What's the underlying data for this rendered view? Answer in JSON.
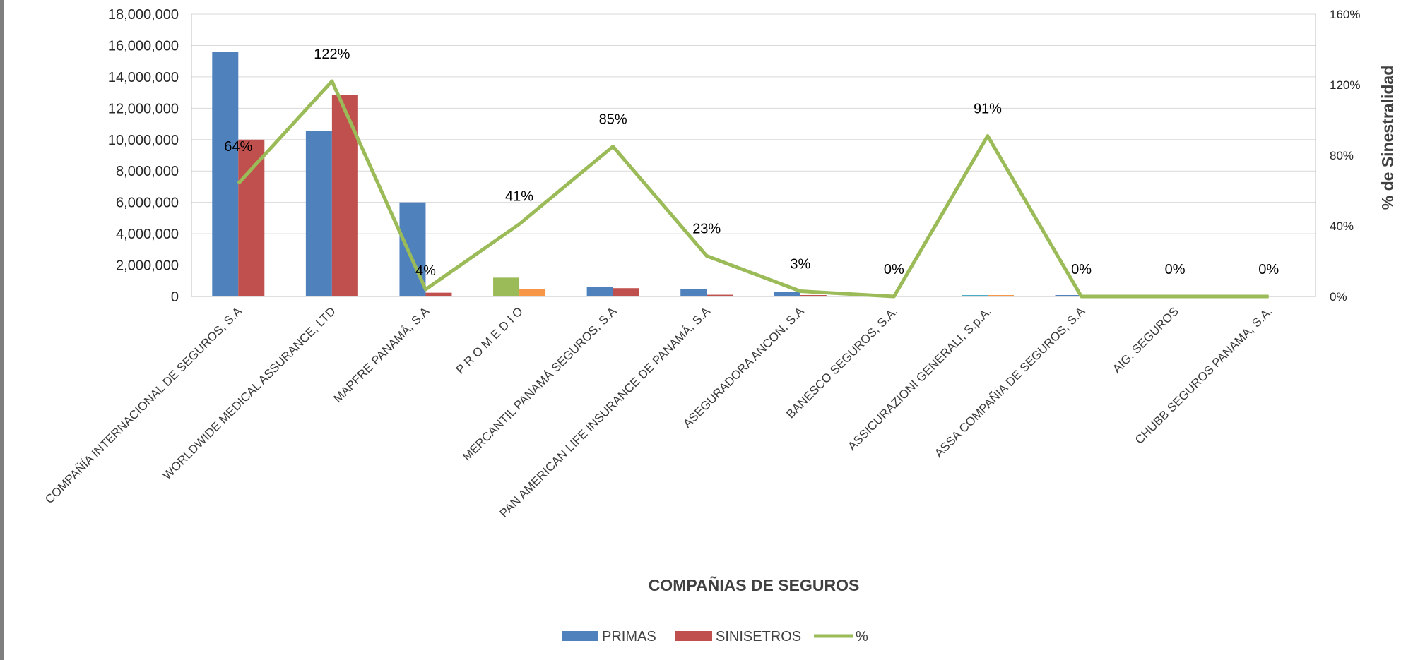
{
  "chart_data": {
    "type": "bar",
    "xlabel": "COMPAÑIAS DE SEGUROS",
    "ylabel": "",
    "y2label": "% de Sinestralidad",
    "ylim": [
      0,
      18000000
    ],
    "y2lim": [
      0,
      160
    ],
    "y_ticks": [
      "0",
      "2,000,000",
      "4,000,000",
      "6,000,000",
      "8,000,000",
      "10,000,000",
      "12,000,000",
      "14,000,000",
      "16,000,000",
      "18,000,000"
    ],
    "y2_ticks": [
      "0%",
      "40%",
      "80%",
      "120%",
      "160%"
    ],
    "grid": true,
    "legend_position": "bottom",
    "categories": [
      "COMPAÑÍA INTERNACIONAL DE SEGUROS, S.A",
      "WORLDWIDE MEDICAL ASSURANCE, LTD",
      "MAPFRE PANAMÁ, S.A",
      "P R O M E D I O",
      "MERCANTIL PANAMÁ SEGUROS, S.A",
      "PAN AMERICAN LIFE INSURANCE DE PANAMÁ, S.A",
      "ASEGURADORA ANCON, S.A",
      "BANESCO SEGUROS, S.A.",
      "ASSICURAZIONI GENERALI, S.p.A.",
      "ASSA COMPAÑÍA DE SEGUROS, S.A",
      "AIG.  SEGUROS",
      "CHUBB SEGUROS PANAMA, S.A."
    ],
    "series": [
      {
        "name": "PRIMAS",
        "kind": "bar",
        "axis": "left",
        "color": "#4f81bd",
        "values": [
          15600000,
          10550000,
          6000000,
          1200000,
          620000,
          460000,
          290000,
          5000,
          60000,
          50000,
          0,
          0
        ]
      },
      {
        "name": "SINISETROS",
        "kind": "bar",
        "axis": "left",
        "color": "#c0504d",
        "values": [
          10000000,
          12850000,
          240000,
          490000,
          530000,
          110000,
          10000,
          0,
          55000,
          0,
          0,
          0
        ]
      },
      {
        "name": "%",
        "kind": "line",
        "axis": "right",
        "color": "#9bbb59",
        "values": [
          64,
          122,
          4,
          41,
          85,
          23,
          3,
          0,
          91,
          0,
          0,
          0
        ],
        "labels": [
          "64%",
          "122%",
          "4%",
          "41%",
          "85%",
          "23%",
          "3%",
          "0%",
          "91%",
          "0%",
          "0%",
          "0%"
        ]
      }
    ],
    "special_colors": {
      "promedio_primas": "#9bbb59",
      "promedio_siniestros": "#f79646",
      "generali_primas": "#4bacc6",
      "generali_siniestros": "#f79646"
    },
    "gridline_color": "#d9d9d9",
    "axis_color": "#bfbfbf"
  }
}
